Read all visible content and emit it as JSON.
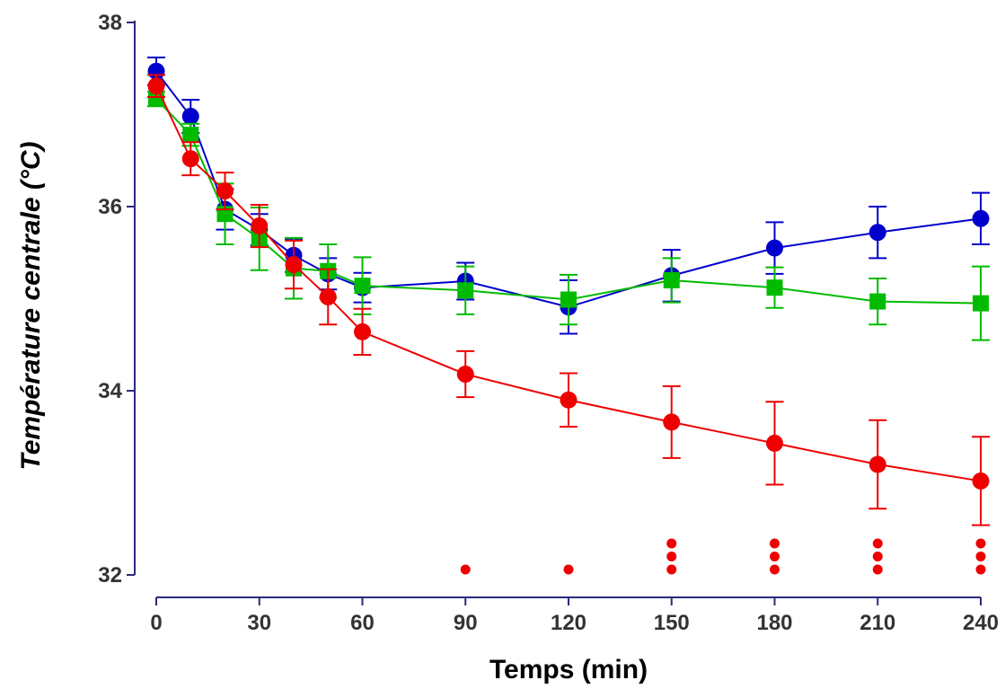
{
  "chart_data": {
    "type": "line",
    "title": "",
    "xlabel": "Temps (min)",
    "ylabel": "Température centrale (°C)",
    "xlim": [
      0,
      240
    ],
    "ylim": [
      32,
      38
    ],
    "x_ticks": [
      "0",
      "30",
      "60",
      "90",
      "120",
      "150",
      "180",
      "210",
      "240"
    ],
    "y_ticks": [
      "32",
      "34",
      "36",
      "38"
    ],
    "grid": false,
    "legend": "none",
    "x": [
      0,
      10,
      20,
      30,
      40,
      50,
      60,
      90,
      120,
      150,
      180,
      210,
      240
    ],
    "series": [
      {
        "color": "#0000cc",
        "marker": "circle",
        "values": [
          37.47,
          36.98,
          35.97,
          35.75,
          35.47,
          35.27,
          35.12,
          35.19,
          34.91,
          35.25,
          35.55,
          35.72,
          35.87
        ],
        "errors": [
          0.15,
          0.18,
          0.22,
          0.17,
          0.18,
          0.17,
          0.16,
          0.2,
          0.29,
          0.28,
          0.28,
          0.28,
          0.28
        ]
      },
      {
        "color": "#00bb00",
        "marker": "square",
        "values": [
          37.17,
          36.78,
          35.92,
          35.65,
          35.33,
          35.3,
          35.14,
          35.09,
          34.99,
          35.2,
          35.12,
          34.97,
          34.95
        ],
        "errors": [
          0.08,
          0.12,
          0.33,
          0.34,
          0.33,
          0.29,
          0.31,
          0.26,
          0.27,
          0.24,
          0.22,
          0.25,
          0.4
        ]
      },
      {
        "color": "#ee0000",
        "marker": "circle",
        "values": [
          37.31,
          36.52,
          36.17,
          35.79,
          35.37,
          35.02,
          34.64,
          34.18,
          33.9,
          33.66,
          33.43,
          33.2,
          33.02
        ],
        "errors": [
          0.12,
          0.18,
          0.2,
          0.23,
          0.26,
          0.3,
          0.25,
          0.25,
          0.29,
          0.39,
          0.45,
          0.48,
          0.48
        ]
      }
    ],
    "significance": {
      "color": "#ee0000",
      "marker": "dot",
      "x": [
        90,
        120,
        150,
        180,
        210,
        240
      ],
      "counts": [
        1,
        1,
        3,
        3,
        3,
        3
      ]
    }
  }
}
